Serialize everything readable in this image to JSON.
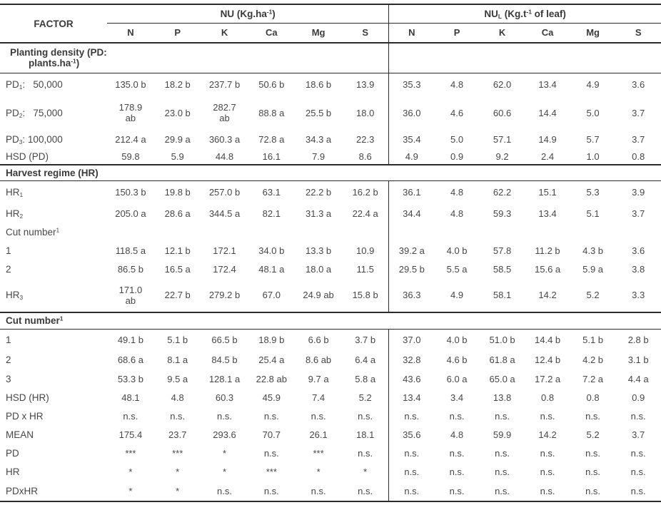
{
  "table": {
    "factor_header": "FACTOR",
    "group1_label": "NU (Kg.ha^-1^)",
    "group2_label": "NU~L~ (Kg.t^-1^ of leaf)",
    "subcolumns": [
      "N",
      "P",
      "K",
      "Ca",
      "Mg",
      "S",
      "N",
      "P",
      "K",
      "Ca",
      "Mg",
      "S"
    ],
    "rows": [
      {
        "kind": "section-left",
        "label": "Planting density (PD:\nplants.ha^-1^)"
      },
      {
        "kind": "data",
        "label": "PD~1~:   50,000",
        "values": [
          "135.0 b",
          "18.2 b",
          "237.7 b",
          "50.6 b",
          "18.6 b",
          "13.9",
          "35.3",
          "4.8",
          "62.0",
          "13.4",
          "4.9",
          "3.6"
        ]
      },
      {
        "kind": "data",
        "label": "PD~2~:   75,000",
        "values": [
          "178.9\nab",
          "23.0 b",
          "282.7\nab",
          "88.8 a",
          "25.5 b",
          "18.0",
          "36.0",
          "4.6",
          "60.6",
          "14.4",
          "5.0",
          "3.7"
        ]
      },
      {
        "kind": "data",
        "label": "PD~3~: 100,000",
        "values": [
          "212.4 a",
          "29.9 a",
          "360.3 a",
          "72.8 a",
          "34.3 a",
          "22.3",
          "35.4",
          "5.0",
          "57.1",
          "14.9",
          "5.7",
          "3.7"
        ]
      },
      {
        "kind": "data",
        "label": "HSD (PD)",
        "values": [
          "59.8",
          "5.9",
          "44.8",
          "16.1",
          "7.9",
          "8.6",
          "4.9",
          "0.9",
          "9.2",
          "2.4",
          "1.0",
          "0.8"
        ]
      },
      {
        "kind": "section-full",
        "label": "Harvest regime (HR)"
      },
      {
        "kind": "data",
        "label": "HR~1~",
        "values": [
          "150.3 b",
          "19.8 b",
          "257.0 b",
          "63.1",
          "22.2 b",
          "16.2 b",
          "36.1",
          "4.8",
          "62.2",
          "15.1",
          "5.3",
          "3.9"
        ]
      },
      {
        "kind": "data",
        "label": "HR~2~",
        "values": [
          "205.0 a",
          "28.6 a",
          "344.5 a",
          "82.1",
          "31.3 a",
          "22.4 a",
          "34.4",
          "4.8",
          "59.3",
          "13.4",
          "5.1",
          "3.7"
        ]
      },
      {
        "kind": "data",
        "label": "Cut number^1^",
        "values": [
          "",
          "",
          "",
          "",
          "",
          "",
          "",
          "",
          "",
          "",
          "",
          ""
        ]
      },
      {
        "kind": "data",
        "label": "1",
        "values": [
          "118.5 a",
          "12.1 b",
          "172.1",
          "34.0 b",
          "13.3 b",
          "10.9",
          "39.2 a",
          "4.0 b",
          "57.8",
          "11.2 b",
          "4.3 b",
          "3.6"
        ]
      },
      {
        "kind": "data",
        "label": "2",
        "values": [
          "86.5 b",
          "16.5 a",
          "172.4",
          "48.1 a",
          "18.0 a",
          "11.5",
          "29.5 b",
          "5.5 a",
          "58.5",
          "15.6 a",
          "5.9 a",
          "3.8"
        ]
      },
      {
        "kind": "data",
        "label": "HR~3~",
        "values": [
          "171.0\nab",
          "22.7 b",
          "279.2 b",
          "67.0",
          "24.9 ab",
          "15.8 b",
          "36.3",
          "4.9",
          "58.1",
          "14.2",
          "5.2",
          "3.3"
        ]
      },
      {
        "kind": "section-full",
        "label": "Cut number^1^"
      },
      {
        "kind": "data",
        "label": "1",
        "values": [
          "49.1 b",
          "5.1 b",
          "66.5 b",
          "18.9 b",
          "6.6 b",
          "3.7 b",
          "37.0",
          "4.0 b",
          "51.0 b",
          "14.4 b",
          "5.1 b",
          "2.8 b"
        ]
      },
      {
        "kind": "data",
        "label": "2",
        "values": [
          "68.6 a",
          "8.1 a",
          "84.5 b",
          "25.4 a",
          "8.6 ab",
          "6.4 a",
          "32.8",
          "4.6 b",
          "61.8 a",
          "12.4 b",
          "4.2 b",
          "3.1 b"
        ]
      },
      {
        "kind": "data",
        "label": "3",
        "values": [
          "53.3 b",
          "9.5 a",
          "128.1 a",
          "22.8 ab",
          "9.7 a",
          "5.8 a",
          "43.6",
          "6.0 a",
          "65.0 a",
          "17.2 a",
          "7.2 a",
          "4.4 a"
        ]
      },
      {
        "kind": "data",
        "label": "HSD (HR)",
        "values": [
          "48.1",
          "4.8",
          "60.3",
          "45.9",
          "7.4",
          "5.2",
          "13.4",
          "3.4",
          "13.8",
          "0.8",
          "0.8",
          "0.9"
        ]
      },
      {
        "kind": "data",
        "label": "PD x HR",
        "values": [
          "n.s.",
          "n.s.",
          "n.s.",
          "n.s.",
          "n.s.",
          "n.s.",
          "n.s.",
          "n.s.",
          "n.s.",
          "n.s.",
          "n.s.",
          "n.s."
        ]
      },
      {
        "kind": "data",
        "label": "MEAN",
        "values": [
          "175.4",
          "23.7",
          "293.6",
          "70.7",
          "26.1",
          "18.1",
          "35.6",
          "4.8",
          "59.9",
          "14.2",
          "5.2",
          "3.7"
        ]
      },
      {
        "kind": "data",
        "label": "PD",
        "values": [
          "***",
          "***",
          "*",
          "n.s.",
          "***",
          "n.s.",
          "n.s.",
          "n.s.",
          "n.s.",
          "n.s.",
          "n.s.",
          "n.s."
        ]
      },
      {
        "kind": "data",
        "label": "HR",
        "values": [
          "*",
          "*",
          "*",
          "***",
          "*",
          "*",
          "n.s.",
          "n.s.",
          "n.s.",
          "n.s.",
          "n.s.",
          "n.s."
        ]
      },
      {
        "kind": "data",
        "label": "PDxHR",
        "values": [
          "*",
          "*",
          "n.s.",
          "n.s.",
          "n.s.",
          "n.s.",
          "n.s.",
          "n.s.",
          "n.s.",
          "n.s.",
          "n.s.",
          "n.s."
        ]
      }
    ]
  }
}
